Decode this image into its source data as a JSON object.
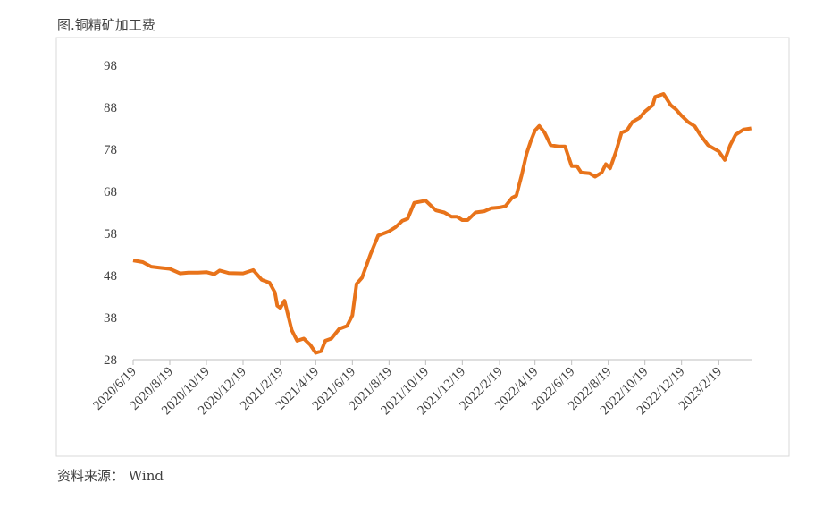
{
  "chart_data": {
    "type": "line",
    "title": "图.铜精矿加工费",
    "source": "资料来源： Wind",
    "color": "#e8731a",
    "x": [
      "2020/6/19",
      "2020/7/5",
      "2020/7/19",
      "2020/8/5",
      "2020/8/19",
      "2020/9/5",
      "2020/9/19",
      "2020/10/5",
      "2020/10/19",
      "2020/11/1",
      "2020/11/10",
      "2020/11/25",
      "2020/12/19",
      "2021/1/5",
      "2021/1/19",
      "2021/2/1",
      "2021/2/10",
      "2021/2/14",
      "2021/2/19",
      "2021/2/26",
      "2021/3/10",
      "2021/3/19",
      "2021/3/30",
      "2021/4/10",
      "2021/4/19",
      "2021/4/28",
      "2021/5/5",
      "2021/5/15",
      "2021/5/28",
      "2021/6/10",
      "2021/6/19",
      "2021/6/26",
      "2021/7/5",
      "2021/7/19",
      "2021/8/1",
      "2021/8/19",
      "2021/8/30",
      "2021/9/10",
      "2021/9/19",
      "2021/9/30",
      "2021/10/19",
      "2021/11/5",
      "2021/11/19",
      "2021/12/1",
      "2021/12/10",
      "2021/12/19",
      "2021/12/28",
      "2022/1/10",
      "2022/1/25",
      "2022/2/5",
      "2022/2/19",
      "2022/3/1",
      "2022/3/12",
      "2022/3/19",
      "2022/3/28",
      "2022/4/5",
      "2022/4/12",
      "2022/4/19",
      "2022/4/26",
      "2022/5/5",
      "2022/5/15",
      "2022/5/28",
      "2022/6/8",
      "2022/6/19",
      "2022/6/28",
      "2022/7/5",
      "2022/7/19",
      "2022/7/28",
      "2022/8/8",
      "2022/8/15",
      "2022/8/22",
      "2022/9/1",
      "2022/9/10",
      "2022/9/19",
      "2022/9/28",
      "2022/10/10",
      "2022/10/19",
      "2022/11/1",
      "2022/11/5",
      "2022/11/19",
      "2022/12/1",
      "2022/12/10",
      "2022/12/19",
      "2022/12/30",
      "2023/1/10",
      "2023/1/19",
      "2023/2/1",
      "2023/2/19",
      "2023/3/1",
      "2023/3/10",
      "2023/3/19",
      "2023/4/1",
      "2023/4/14"
    ],
    "values": [
      51.6,
      51.2,
      50.1,
      49.8,
      49.6,
      48.5,
      48.7,
      48.7,
      48.8,
      48.3,
      49.2,
      48.6,
      48.5,
      49.3,
      47,
      46.3,
      44,
      40.8,
      40.3,
      42,
      35,
      32.5,
      33,
      31.5,
      29.6,
      30,
      32.5,
      33,
      35.3,
      36,
      38.5,
      46,
      47.5,
      53,
      57.5,
      58.5,
      59.5,
      61,
      61.5,
      65.3,
      65.8,
      63.5,
      63,
      62,
      62,
      61.2,
      61.2,
      63,
      63.3,
      64,
      64.2,
      64.5,
      66.5,
      67,
      72,
      77,
      80,
      82.5,
      83.6,
      82,
      79,
      78.7,
      78.7,
      74,
      74,
      72.5,
      72.3,
      71.5,
      72.5,
      74.5,
      73.5,
      77.5,
      82,
      82.5,
      84.5,
      85.5,
      87,
      88.5,
      90.5,
      91.2,
      88.5,
      87.5,
      86,
      84.5,
      83.5,
      81.5,
      79,
      77.5,
      75.5,
      79,
      81.5,
      82.7,
      83
    ],
    "xlim": [
      "2020/6/19",
      "2023/4/16"
    ],
    "xticks": [
      "2020/6/19",
      "2020/8/19",
      "2020/10/19",
      "2020/12/19",
      "2021/2/19",
      "2021/4/19",
      "2021/6/19",
      "2021/8/19",
      "2021/10/19",
      "2021/12/19",
      "2022/2/19",
      "2022/4/19",
      "2022/6/19",
      "2022/8/19",
      "2022/10/19",
      "2022/12/19",
      "2023/2/19"
    ],
    "ylim": [
      28,
      98
    ],
    "yticks": [
      28,
      38,
      48,
      58,
      68,
      78,
      88,
      98
    ],
    "grid": false
  }
}
